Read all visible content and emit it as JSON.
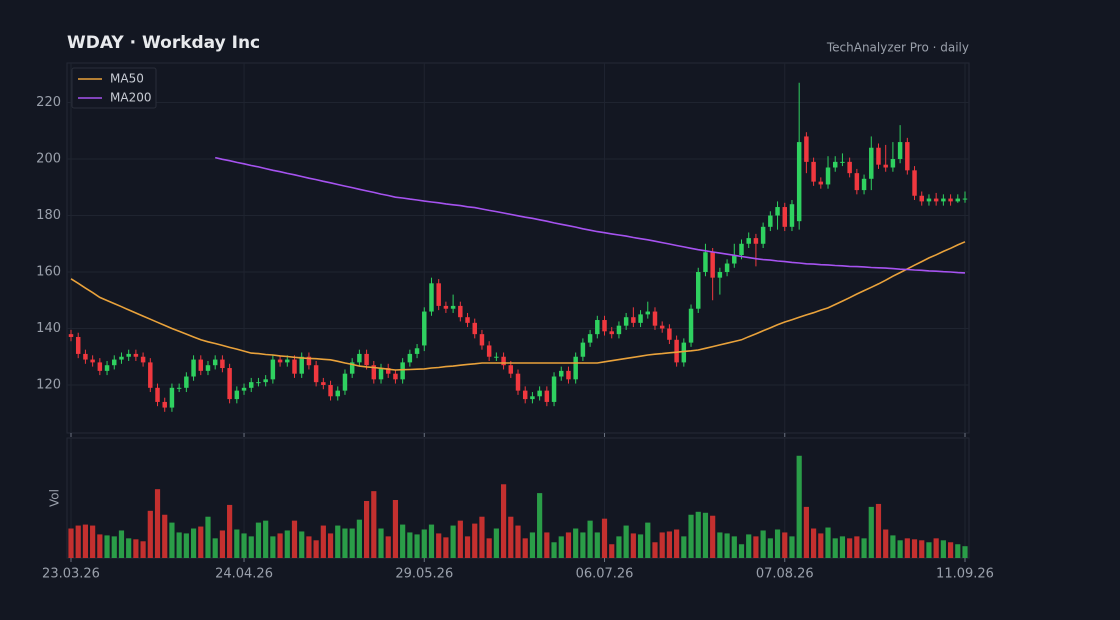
{
  "chart_data": {
    "type": "candlestick",
    "title": "WDAY  ·  Workday Inc",
    "subtitle": "TechAnalyzer Pro · daily",
    "volume_label": "Vol",
    "categories": [
      "23.03.26",
      null,
      null,
      null,
      null,
      null,
      null,
      null,
      null,
      null,
      null,
      null,
      null,
      null,
      null,
      null,
      null,
      null,
      null,
      null,
      null,
      null,
      null,
      null,
      "24.04.26",
      null,
      null,
      null,
      null,
      null,
      null,
      null,
      null,
      null,
      null,
      null,
      null,
      null,
      null,
      null,
      null,
      null,
      null,
      null,
      null,
      null,
      null,
      null,
      null,
      "29.05.26",
      null,
      null,
      null,
      null,
      null,
      null,
      null,
      null,
      null,
      null,
      null,
      null,
      null,
      null,
      null,
      null,
      null,
      null,
      null,
      null,
      null,
      null,
      null,
      null,
      "06.07.26",
      null,
      null,
      null,
      null,
      null,
      null,
      null,
      null,
      null,
      null,
      null,
      null,
      null,
      null,
      null,
      null,
      null,
      null,
      null,
      null,
      null,
      null,
      null,
      null,
      "07.08.26",
      null,
      null,
      null,
      null,
      null,
      null,
      null,
      null,
      null,
      null,
      null,
      null,
      null,
      null,
      null,
      null,
      null,
      null,
      null,
      null,
      null,
      null,
      null,
      null,
      "11.09.26"
    ],
    "open": [
      138,
      137,
      131,
      129,
      128,
      125,
      127,
      129,
      130,
      131,
      130,
      128,
      119,
      114,
      112,
      119,
      119,
      123,
      129,
      125,
      127,
      129,
      126,
      115,
      118,
      119,
      121,
      121,
      122,
      129,
      128,
      129,
      124,
      130,
      127,
      121,
      120,
      116,
      118,
      124,
      128,
      131,
      127,
      122,
      126,
      124,
      122,
      128,
      131,
      134,
      146,
      156,
      148,
      147,
      148,
      144,
      142,
      138,
      134,
      130,
      130,
      127,
      124,
      118,
      115,
      116,
      118,
      114,
      123,
      125,
      122,
      130,
      135,
      138,
      143,
      139,
      138,
      141,
      144,
      142,
      145,
      146,
      141,
      140,
      136,
      128,
      135,
      147,
      160,
      167,
      158,
      160,
      163,
      166,
      170,
      172,
      170,
      176,
      180,
      183,
      176,
      178,
      208,
      199,
      192,
      191,
      197,
      199,
      199,
      195,
      189,
      193,
      204,
      198,
      197,
      200,
      206,
      196,
      187,
      185,
      186,
      185,
      186,
      185,
      186
    ],
    "high": [
      139.5,
      138.5,
      132.5,
      130.5,
      129.5,
      128.5,
      130.5,
      131.5,
      132.5,
      132.5,
      131.5,
      129.5,
      120.5,
      115.5,
      120.5,
      120.5,
      124.5,
      130.5,
      130.5,
      128.5,
      130.5,
      130.5,
      127.5,
      119.5,
      120.5,
      122.5,
      122.5,
      123.5,
      130.5,
      130.5,
      130.5,
      130.5,
      131.5,
      131.5,
      128.5,
      122.5,
      121.5,
      119.5,
      125.5,
      129.5,
      132.5,
      132.5,
      128.5,
      127.5,
      127.5,
      125.5,
      129.5,
      132.5,
      134.5,
      147.5,
      158,
      157.5,
      149.5,
      152,
      149.5,
      145.5,
      143.5,
      139.5,
      135.5,
      131.5,
      131.5,
      128.5,
      125.5,
      119.5,
      117.5,
      119.5,
      119.5,
      124.5,
      126.5,
      126.5,
      131.5,
      136.5,
      139.5,
      144.5,
      144.5,
      140.5,
      142.5,
      145.5,
      147.5,
      146.5,
      149.5,
      147.5,
      142.5,
      141.5,
      137.5,
      136.5,
      148.5,
      161.5,
      170,
      168.5,
      161.5,
      164.5,
      170,
      171.5,
      174,
      173.5,
      177.5,
      181.5,
      185,
      184.5,
      185.5,
      227,
      209.5,
      200.5,
      193.5,
      201,
      201,
      202,
      200.5,
      196.5,
      194.5,
      208,
      205.5,
      205,
      206,
      212,
      207.5,
      197.5,
      188.5,
      187.5,
      188,
      187.5,
      187.5,
      187.5,
      188.5
    ],
    "low": [
      135.5,
      129.5,
      127.5,
      126.5,
      123.5,
      123.5,
      125.5,
      127.5,
      128.5,
      128.5,
      126.5,
      117.5,
      112.5,
      110.5,
      110.5,
      117.5,
      117.5,
      121.5,
      123.5,
      123.5,
      125.5,
      124.5,
      113.5,
      113.5,
      116.5,
      117.5,
      119.5,
      119.5,
      120.5,
      126.5,
      126.5,
      122.5,
      122.5,
      125.5,
      119.5,
      118.5,
      114.5,
      114.5,
      116.5,
      122.5,
      126.5,
      125.5,
      120.5,
      120.5,
      122.5,
      120.5,
      120.5,
      126.5,
      129.5,
      132,
      144.5,
      146.5,
      145.5,
      145.5,
      142.5,
      140.5,
      136.5,
      132.5,
      128.5,
      128.5,
      125.5,
      122.5,
      116.5,
      113.5,
      113.5,
      114.5,
      112.5,
      112.5,
      121.5,
      120.5,
      120.5,
      128.5,
      133.5,
      136.5,
      137.5,
      136.5,
      136.5,
      139.5,
      140.5,
      140.5,
      143.5,
      139.5,
      138.5,
      134.5,
      126.5,
      126.5,
      133.5,
      145.5,
      158.5,
      150,
      152,
      158.5,
      161.5,
      164.5,
      168.5,
      162,
      168.5,
      174.5,
      175,
      174.5,
      174.5,
      175,
      195,
      190.5,
      189.5,
      189.5,
      195.5,
      197.5,
      193.5,
      187.5,
      187.5,
      189,
      196.5,
      195.5,
      195.5,
      198.5,
      194.5,
      185.5,
      183.5,
      183.5,
      183.5,
      183.5,
      183.5,
      184.5,
      184.5
    ],
    "close": [
      137,
      131,
      129,
      128,
      125,
      127,
      129,
      130,
      131,
      130,
      128,
      119,
      114,
      112,
      119,
      119,
      123,
      129,
      125,
      127,
      129,
      126,
      115,
      118,
      119,
      121,
      121,
      122,
      129,
      128,
      129,
      124,
      130,
      127,
      121,
      120,
      116,
      118,
      124,
      128,
      131,
      127,
      122,
      126,
      124,
      122,
      128,
      131,
      133,
      146,
      156,
      148,
      147,
      148,
      144,
      142,
      138,
      134,
      130,
      130,
      127,
      124,
      118,
      115,
      116,
      118,
      114,
      123,
      125,
      122,
      130,
      135,
      138,
      143,
      139,
      138,
      141,
      144,
      142,
      145,
      146,
      141,
      140,
      136,
      128,
      135,
      147,
      160,
      167,
      158,
      160,
      163,
      166,
      170,
      172,
      170,
      176,
      180,
      183,
      176,
      184,
      206,
      199,
      192,
      191,
      197,
      199,
      199,
      195,
      189,
      193,
      204,
      198,
      197,
      200,
      206,
      196,
      187,
      185,
      186,
      185,
      186,
      185,
      186,
      186
    ],
    "volume": [
      30,
      33,
      34,
      33,
      24,
      23,
      22,
      28,
      20,
      19,
      17,
      48,
      70,
      44,
      36,
      26,
      25,
      30,
      32,
      42,
      20,
      28,
      54,
      29,
      25,
      22,
      36,
      38,
      22,
      25,
      28,
      38,
      27,
      22,
      18,
      33,
      25,
      33,
      30,
      30,
      39,
      58,
      68,
      30,
      22,
      59,
      34,
      26,
      24,
      29,
      34,
      25,
      21,
      33,
      38,
      22,
      35,
      42,
      20,
      30,
      75,
      42,
      33,
      20,
      26,
      66,
      26,
      16,
      22,
      26,
      30,
      26,
      38,
      26,
      40,
      14,
      22,
      33,
      25,
      24,
      36,
      16,
      26,
      27,
      29,
      22,
      44,
      47,
      46,
      43,
      26,
      25,
      22,
      14,
      24,
      22,
      28,
      20,
      29,
      26,
      22,
      104,
      52,
      30,
      25,
      31,
      20,
      22,
      20,
      22,
      20,
      52,
      55,
      29,
      23,
      18,
      20,
      19,
      18,
      16,
      20,
      18,
      16,
      14,
      12
    ],
    "up_color": "#2fd160",
    "down_color": "#f0383f",
    "volume_up_color": "#2a9d48",
    "volume_down_color": "#c4302f",
    "series": [
      {
        "name": "MA50",
        "color": "#e9a23b",
        "values": [
          157.6,
          156.0,
          154.3,
          152.7,
          151.0,
          149.9,
          148.8,
          147.7,
          146.6,
          145.5,
          144.4,
          143.3,
          142.2,
          141.1,
          140.0,
          139.0,
          138.0,
          137.0,
          136.0,
          135.3,
          134.7,
          134.0,
          133.3,
          132.7,
          132.0,
          131.3,
          131.1,
          130.8,
          130.6,
          130.3,
          130.1,
          129.8,
          129.6,
          129.4,
          129.3,
          129.1,
          128.9,
          128.4,
          127.8,
          127.3,
          126.7,
          126.4,
          126.2,
          125.9,
          125.6,
          125.3,
          125.4,
          125.5,
          125.6,
          125.7,
          126.0,
          126.2,
          126.5,
          126.7,
          127.0,
          127.3,
          127.5,
          127.8,
          127.8,
          127.8,
          127.8,
          127.8,
          127.8,
          127.8,
          127.8,
          127.8,
          127.8,
          127.8,
          127.8,
          127.8,
          127.8,
          127.8,
          127.8,
          127.8,
          128.2,
          128.6,
          129.0,
          129.4,
          129.8,
          130.2,
          130.6,
          130.9,
          131.1,
          131.4,
          131.6,
          131.9,
          132.1,
          132.4,
          133.0,
          133.6,
          134.2,
          134.8,
          135.4,
          136.0,
          137.1,
          138.1,
          139.2,
          140.2,
          141.3,
          142.3,
          143.1,
          144.0,
          144.8,
          145.6,
          146.5,
          147.3,
          148.5,
          149.7,
          150.9,
          152.2,
          153.4,
          154.6,
          155.8,
          157.1,
          158.5,
          159.8,
          161.1,
          162.4,
          163.7,
          165.0,
          166.1,
          167.3,
          168.4,
          169.6,
          170.7
        ]
      },
      {
        "name": "MA200",
        "color": "#a653f0",
        "values": [
          null,
          null,
          null,
          null,
          null,
          null,
          null,
          null,
          null,
          null,
          null,
          null,
          null,
          null,
          null,
          null,
          null,
          null,
          null,
          null,
          200.5,
          199.9,
          199.4,
          198.8,
          198.3,
          197.7,
          197.2,
          196.6,
          196.0,
          195.5,
          194.9,
          194.4,
          193.8,
          193.2,
          192.7,
          192.1,
          191.6,
          191.0,
          190.4,
          189.9,
          189.3,
          188.7,
          188.2,
          187.6,
          187.1,
          186.5,
          186.2,
          185.8,
          185.5,
          185.1,
          184.8,
          184.5,
          184.1,
          183.8,
          183.5,
          183.1,
          182.8,
          182.3,
          181.8,
          181.4,
          180.9,
          180.4,
          179.9,
          179.4,
          179.0,
          178.5,
          178.0,
          177.4,
          176.9,
          176.4,
          175.9,
          175.3,
          174.8,
          174.3,
          173.9,
          173.5,
          173.1,
          172.7,
          172.2,
          171.8,
          171.4,
          170.9,
          170.4,
          169.9,
          169.4,
          168.9,
          168.4,
          167.9,
          167.5,
          167.1,
          166.7,
          166.3,
          165.9,
          165.5,
          165.1,
          164.7,
          164.4,
          164.2,
          163.9,
          163.7,
          163.4,
          163.2,
          162.9,
          162.8,
          162.6,
          162.5,
          162.3,
          162.2,
          162.0,
          161.9,
          161.8,
          161.6,
          161.5,
          161.4,
          161.2,
          161.0,
          160.9,
          160.7,
          160.6,
          160.4,
          160.3,
          160.1,
          160.0,
          159.8,
          159.7
        ]
      }
    ],
    "ylim": [
      103,
      234
    ],
    "yticks": [
      120,
      140,
      160,
      180,
      200,
      220
    ],
    "volume_lim": [
      0,
      118
    ],
    "grid": true,
    "legend": "upper left"
  }
}
